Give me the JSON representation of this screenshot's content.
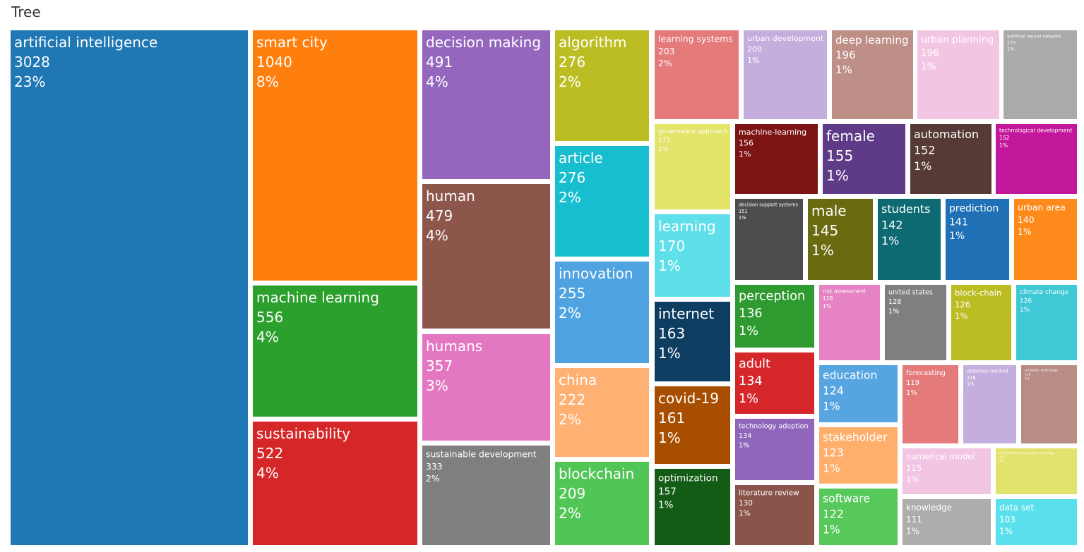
{
  "chart_data": {
    "type": "treemap",
    "title": "Tree",
    "items": [
      {
        "label": "artificial intelligence",
        "value": 3028,
        "percent": "23%",
        "color": "#1f77b4"
      },
      {
        "label": "smart city",
        "value": 1040,
        "percent": "8%",
        "color": "#ff7f0e"
      },
      {
        "label": "machine learning",
        "value": 556,
        "percent": "4%",
        "color": "#2ca02c"
      },
      {
        "label": "sustainability",
        "value": 522,
        "percent": "4%",
        "color": "#d62728"
      },
      {
        "label": "decision making",
        "value": 491,
        "percent": "4%",
        "color": "#9467bd"
      },
      {
        "label": "human",
        "value": 479,
        "percent": "4%",
        "color": "#8c564b"
      },
      {
        "label": "humans",
        "value": 357,
        "percent": "3%",
        "color": "#e377c2"
      },
      {
        "label": "sustainable development",
        "value": 333,
        "percent": "2%",
        "color": "#7f7f7f"
      },
      {
        "label": "algorithm",
        "value": 276,
        "percent": "2%",
        "color": "#bcbd22"
      },
      {
        "label": "article",
        "value": 276,
        "percent": "2%",
        "color": "#17becf"
      },
      {
        "label": "innovation",
        "value": 255,
        "percent": "2%",
        "color": "#4fa3e0"
      },
      {
        "label": "china",
        "value": 222,
        "percent": "2%",
        "color": "#ffb073"
      },
      {
        "label": "blockchain",
        "value": 209,
        "percent": "2%",
        "color": "#51c555"
      },
      {
        "label": "learning systems",
        "value": 203,
        "percent": "2%",
        "color": "#e47a7a"
      },
      {
        "label": "urban development",
        "value": 200,
        "percent": "1%",
        "color": "#c4aedd"
      },
      {
        "label": "deep learning",
        "value": 196,
        "percent": "1%",
        "color": "#be8f86"
      },
      {
        "label": "urban planning",
        "value": 196,
        "percent": "1%",
        "color": "#f2c6e3"
      },
      {
        "label": "artificial neural network",
        "value": 175,
        "percent": "1%",
        "color": "#aaaaaa"
      },
      {
        "label": "governance approach",
        "value": 175,
        "percent": "1%",
        "color": "#e3e46a"
      },
      {
        "label": "learning",
        "value": 170,
        "percent": "1%",
        "color": "#5edfea"
      },
      {
        "label": "internet",
        "value": 163,
        "percent": "1%",
        "color": "#0e3d62"
      },
      {
        "label": "covid-19",
        "value": 161,
        "percent": "1%",
        "color": "#a84e00"
      },
      {
        "label": "optimization",
        "value": 157,
        "percent": "1%",
        "color": "#135c16"
      },
      {
        "label": "machine-learning",
        "value": 156,
        "percent": "1%",
        "color": "#7d1414"
      },
      {
        "label": "female",
        "value": 155,
        "percent": "1%",
        "color": "#5e3a87"
      },
      {
        "label": "automation",
        "value": 152,
        "percent": "1%",
        "color": "#553a35"
      },
      {
        "label": "technological development",
        "value": 152,
        "percent": "1%",
        "color": "#c2179a"
      },
      {
        "label": "decision support systems",
        "value": 151,
        "percent": "1%",
        "color": "#4d4d4d"
      },
      {
        "label": "male",
        "value": 145,
        "percent": "1%",
        "color": "#6a6a10"
      },
      {
        "label": "students",
        "value": 142,
        "percent": "1%",
        "color": "#0e6a72"
      },
      {
        "label": "prediction",
        "value": 141,
        "percent": "1%",
        "color": "#1f70b5"
      },
      {
        "label": "urban area",
        "value": 140,
        "percent": "1%",
        "color": "#ff8a1c"
      },
      {
        "label": "perception",
        "value": 136,
        "percent": "1%",
        "color": "#2e9a30"
      },
      {
        "label": "adult",
        "value": 134,
        "percent": "1%",
        "color": "#d5262a"
      },
      {
        "label": "technology adoption",
        "value": 134,
        "percent": "1%",
        "color": "#9066ba"
      },
      {
        "label": "literature review",
        "value": 130,
        "percent": "1%",
        "color": "#8a544a"
      },
      {
        "label": "risk assessment",
        "value": 128,
        "percent": "1%",
        "color": "#e583c5"
      },
      {
        "label": "united states",
        "value": 128,
        "percent": "1%",
        "color": "#7f7f7f"
      },
      {
        "label": "block-chain",
        "value": 126,
        "percent": "1%",
        "color": "#bcbd22"
      },
      {
        "label": "climate change",
        "value": 126,
        "percent": "1%",
        "color": "#3fc8d6"
      },
      {
        "label": "education",
        "value": 124,
        "percent": "1%",
        "color": "#56a5e0"
      },
      {
        "label": "stakeholder",
        "value": 123,
        "percent": "1%",
        "color": "#ffaf6c"
      },
      {
        "label": "software",
        "value": 122,
        "percent": "1%",
        "color": "#56c95a"
      },
      {
        "label": "forecasting",
        "value": 119,
        "percent": "1%",
        "color": "#e47a7a"
      },
      {
        "label": "detection method",
        "value": 118,
        "percent": "1%",
        "color": "#c4aedd"
      },
      {
        "label": "computer technology",
        "value": 116,
        "percent": "1%",
        "color": "#b98c85"
      },
      {
        "label": "numerical model",
        "value": 115,
        "percent": "1%",
        "color": "#f2c6e3"
      },
      {
        "label": "information communication technology",
        "value": 114,
        "percent": "1%",
        "color": "#e2e36c"
      },
      {
        "label": "knowledge",
        "value": 111,
        "percent": "1%",
        "color": "#adadad"
      },
      {
        "label": "data set",
        "value": 103,
        "percent": "1%",
        "color": "#5ae0ec"
      }
    ]
  }
}
